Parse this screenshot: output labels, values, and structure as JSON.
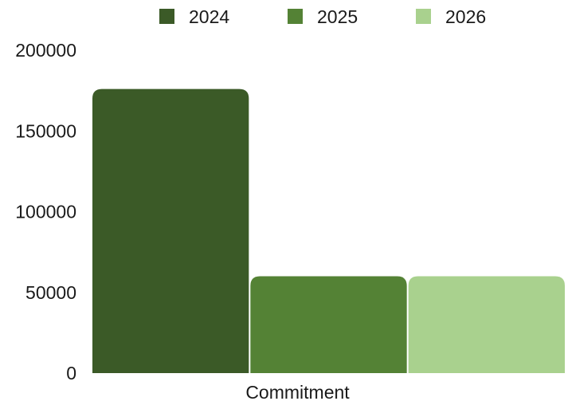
{
  "chart_data": {
    "type": "bar",
    "categories": [
      "Commitment"
    ],
    "series": [
      {
        "name": "2024",
        "values": [
          176000
        ],
        "color": "#3b5a27"
      },
      {
        "name": "2025",
        "values": [
          60000
        ],
        "color": "#548235"
      },
      {
        "name": "2026",
        "values": [
          60000
        ],
        "color": "#a9d18e"
      }
    ],
    "ylim": [
      0,
      200000
    ],
    "yticks": [
      "0",
      "50000",
      "100000",
      "150000",
      "200000"
    ],
    "legend_position": "top",
    "grid": false
  }
}
